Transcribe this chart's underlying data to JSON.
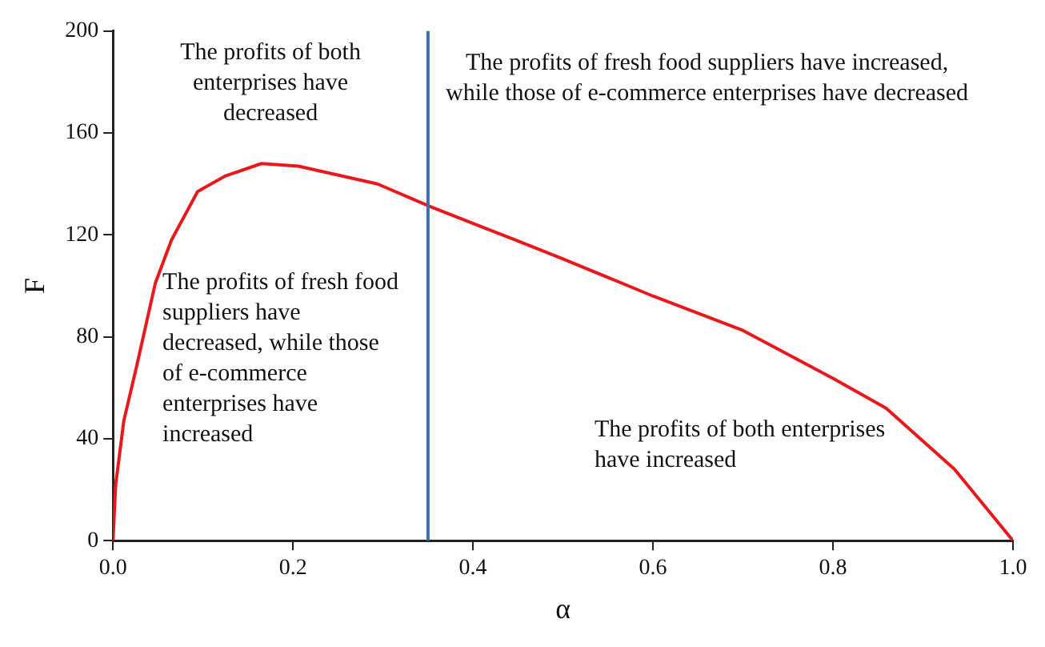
{
  "chart_data": {
    "type": "line",
    "xlabel": "α",
    "ylabel": "F",
    "x": [
      0,
      0.003,
      0.012,
      0.026,
      0.047,
      0.065,
      0.094,
      0.124,
      0.165,
      0.206,
      0.294,
      0.35,
      0.411,
      0.447,
      0.5,
      0.6,
      0.7,
      0.8,
      0.859,
      0.935,
      1.0
    ],
    "series": [
      {
        "color": "#e8191c",
        "values": [
          0,
          22,
          47,
          68,
          101,
          118,
          137,
          143,
          148,
          147,
          140,
          131.5,
          123,
          118,
          110.6,
          96,
          82.5,
          63.7,
          52,
          28,
          0
        ]
      }
    ],
    "xlim": [
      0,
      1
    ],
    "xticks": [
      {
        "value": 0,
        "label": "0.0"
      },
      {
        "value": 0.2,
        "label": "0.2"
      },
      {
        "value": 0.4,
        "label": "0.4"
      },
      {
        "value": 0.6,
        "label": "0.6"
      },
      {
        "value": 0.8,
        "label": "0.8"
      },
      {
        "value": 1,
        "label": "1.0"
      }
    ],
    "ylim": [
      0,
      200
    ],
    "yticks": [
      0,
      40,
      80,
      120,
      160,
      200
    ],
    "ref_lines": [
      {
        "axis": "x",
        "value": 0.35,
        "color": "#3d6fa6"
      }
    ],
    "grid": false,
    "legend": false,
    "marker": "none",
    "line_style": "solid",
    "annotations": [
      "The profits of both enterprises have decreased",
      "The profits of fresh food suppliers have increased, while those of e-commerce enterprises have decreased",
      "The profits of fresh food suppliers have decreased, while those of e-commerce enterprises have increased",
      "The profits of both enterprises have increased"
    ]
  }
}
